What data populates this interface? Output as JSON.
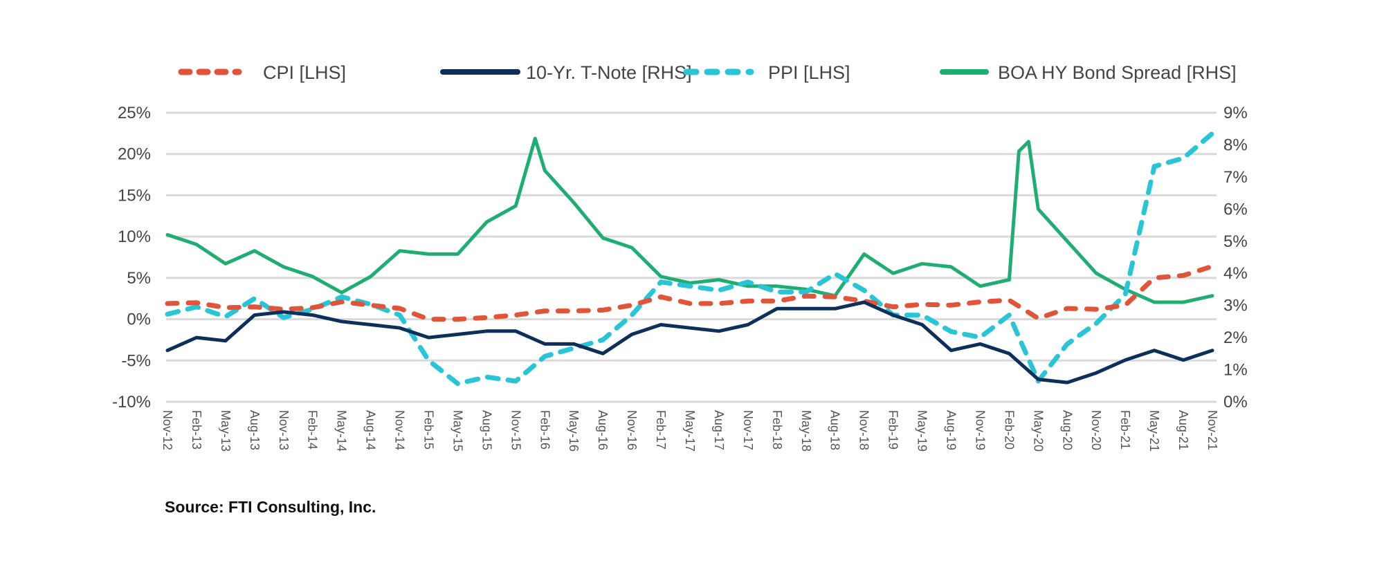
{
  "chart_data": {
    "type": "line",
    "title": "",
    "source": "Source: FTI Consulting, Inc.",
    "legend_position": "top",
    "grid": true,
    "left_axis": {
      "ylim": [
        -10,
        25
      ],
      "ticks": [
        "25%",
        "20%",
        "15%",
        "10%",
        "5%",
        "0%",
        "-5%",
        "-10%"
      ],
      "tick_values": [
        25,
        20,
        15,
        10,
        5,
        0,
        -5,
        -10
      ]
    },
    "right_axis": {
      "ylim": [
        0,
        9
      ],
      "ticks": [
        "9%",
        "8%",
        "7%",
        "6%",
        "5%",
        "4%",
        "3%",
        "2%",
        "1%",
        "0%"
      ],
      "tick_values": [
        9,
        8,
        7,
        6,
        5,
        4,
        3,
        2,
        1,
        0
      ]
    },
    "x_ticks": [
      "Nov-12",
      "Feb-13",
      "May-13",
      "Aug-13",
      "Nov-13",
      "Feb-14",
      "May-14",
      "Aug-14",
      "Nov-14",
      "Feb-15",
      "May-15",
      "Aug-15",
      "Nov-15",
      "Feb-16",
      "May-16",
      "Aug-16",
      "Nov-16",
      "Feb-17",
      "May-17",
      "Aug-17",
      "Nov-17",
      "Feb-18",
      "May-18",
      "Aug-18",
      "Nov-18",
      "Feb-19",
      "May-19",
      "Aug-19",
      "Nov-19",
      "Feb-20",
      "May-20",
      "Aug-20",
      "Nov-20",
      "Feb-21",
      "May-21",
      "Aug-21",
      "Nov-21"
    ],
    "series": [
      {
        "name": "CPI [LHS]",
        "axis": "left",
        "color": "#e0553a",
        "style": "dashed",
        "x": [
          "2012-11",
          "2013-02",
          "2013-05",
          "2013-08",
          "2013-11",
          "2014-02",
          "2014-05",
          "2014-08",
          "2014-11",
          "2015-02",
          "2015-05",
          "2015-08",
          "2015-11",
          "2016-02",
          "2016-05",
          "2016-08",
          "2016-11",
          "2017-02",
          "2017-05",
          "2017-08",
          "2017-11",
          "2018-02",
          "2018-05",
          "2018-08",
          "2018-11",
          "2019-02",
          "2019-05",
          "2019-08",
          "2019-11",
          "2020-02",
          "2020-05",
          "2020-08",
          "2020-11",
          "2021-02",
          "2021-05",
          "2021-08",
          "2021-11"
        ],
        "values": [
          1.9,
          2.0,
          1.4,
          1.5,
          1.2,
          1.4,
          2.1,
          1.7,
          1.3,
          0.0,
          0.0,
          0.2,
          0.5,
          1.0,
          1.0,
          1.1,
          1.7,
          2.7,
          1.9,
          1.9,
          2.2,
          2.2,
          2.8,
          2.7,
          2.2,
          1.5,
          1.8,
          1.7,
          2.1,
          2.3,
          0.1,
          1.3,
          1.2,
          1.7,
          5.0,
          5.3,
          6.4
        ]
      },
      {
        "name": "10-Yr. T-Note [RHS]",
        "axis": "right",
        "color": "#0d2f5a",
        "style": "solid",
        "x": [
          "2012-11",
          "2013-02",
          "2013-05",
          "2013-08",
          "2013-11",
          "2014-02",
          "2014-05",
          "2014-08",
          "2014-11",
          "2015-02",
          "2015-05",
          "2015-08",
          "2015-11",
          "2016-02",
          "2016-05",
          "2016-08",
          "2016-11",
          "2017-02",
          "2017-05",
          "2017-08",
          "2017-11",
          "2018-02",
          "2018-05",
          "2018-08",
          "2018-11",
          "2019-02",
          "2019-05",
          "2019-08",
          "2019-11",
          "2020-02",
          "2020-05",
          "2020-08",
          "2020-11",
          "2021-02",
          "2021-05",
          "2021-08",
          "2021-11"
        ],
        "values": [
          1.6,
          2.0,
          1.9,
          2.7,
          2.8,
          2.7,
          2.5,
          2.4,
          2.3,
          2.0,
          2.1,
          2.2,
          2.2,
          1.8,
          1.8,
          1.5,
          2.1,
          2.4,
          2.3,
          2.2,
          2.4,
          2.9,
          2.9,
          2.9,
          3.1,
          2.7,
          2.4,
          1.6,
          1.8,
          1.5,
          0.7,
          0.6,
          0.9,
          1.3,
          1.6,
          1.3,
          1.6
        ]
      },
      {
        "name": "PPI [LHS]",
        "axis": "left",
        "color": "#27c5d6",
        "style": "dashed",
        "x": [
          "2012-11",
          "2013-02",
          "2013-05",
          "2013-08",
          "2013-11",
          "2014-02",
          "2014-05",
          "2014-08",
          "2014-11",
          "2015-02",
          "2015-05",
          "2015-08",
          "2015-11",
          "2016-02",
          "2016-05",
          "2016-08",
          "2016-11",
          "2017-02",
          "2017-05",
          "2017-08",
          "2017-11",
          "2018-02",
          "2018-05",
          "2018-08",
          "2018-11",
          "2019-02",
          "2019-05",
          "2019-08",
          "2019-11",
          "2020-02",
          "2020-05",
          "2020-08",
          "2020-11",
          "2021-02",
          "2021-05",
          "2021-08",
          "2021-11"
        ],
        "values": [
          0.6,
          1.5,
          0.3,
          2.5,
          0.2,
          1.2,
          2.7,
          1.8,
          0.5,
          -5.0,
          -7.8,
          -7.0,
          -7.5,
          -4.5,
          -3.5,
          -2.5,
          0.5,
          4.5,
          4.0,
          3.5,
          4.5,
          3.3,
          3.3,
          5.5,
          3.5,
          0.5,
          0.5,
          -1.5,
          -2.2,
          0.5,
          -7.5,
          -3.0,
          -0.5,
          3.0,
          18.5,
          19.5,
          22.5
        ]
      },
      {
        "name": "BOA HY Bond Spread [RHS]",
        "axis": "right",
        "color": "#1fae72",
        "style": "solid",
        "x": [
          "2012-11",
          "2013-02",
          "2013-05",
          "2013-08",
          "2013-11",
          "2014-02",
          "2014-05",
          "2014-08",
          "2014-11",
          "2015-02",
          "2015-05",
          "2015-08",
          "2015-11",
          "2016-01",
          "2016-02",
          "2016-05",
          "2016-08",
          "2016-11",
          "2017-02",
          "2017-05",
          "2017-08",
          "2017-11",
          "2018-02",
          "2018-05",
          "2018-08",
          "2018-11",
          "2019-02",
          "2019-05",
          "2019-08",
          "2019-11",
          "2020-02",
          "2020-03",
          "2020-04",
          "2020-05",
          "2020-08",
          "2020-11",
          "2021-02",
          "2021-05",
          "2021-08",
          "2021-11"
        ],
        "values": [
          5.2,
          4.9,
          4.3,
          4.7,
          4.2,
          3.9,
          3.4,
          3.9,
          4.7,
          4.6,
          4.6,
          5.6,
          6.1,
          8.2,
          7.2,
          6.2,
          5.1,
          4.8,
          3.9,
          3.7,
          3.8,
          3.6,
          3.6,
          3.5,
          3.3,
          4.6,
          4.0,
          4.3,
          4.2,
          3.6,
          3.8,
          7.8,
          8.1,
          6.0,
          5.0,
          4.0,
          3.5,
          3.1,
          3.1,
          3.3
        ]
      }
    ]
  }
}
